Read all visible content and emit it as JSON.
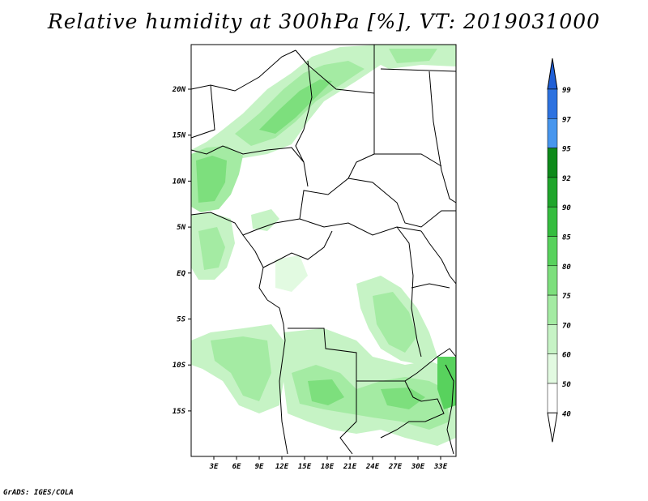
{
  "title": "Relative humidity at 300hPa [%], VT: 2019031000",
  "credit": "GrADS: IGES/COLA",
  "lat_ticks": [
    "20N",
    "15N",
    "10N",
    "5N",
    "EQ",
    "5S",
    "10S",
    "15S"
  ],
  "lon_ticks": [
    "3E",
    "6E",
    "9E",
    "12E",
    "15E",
    "18E",
    "21E",
    "24E",
    "27E",
    "30E",
    "33E"
  ],
  "colorbar": {
    "labels": [
      "99",
      "97",
      "95",
      "92",
      "90",
      "85",
      "80",
      "75",
      "70",
      "60",
      "50",
      "40"
    ],
    "colors": [
      "#1f5fd6",
      "#2d72e0",
      "#4796ee",
      "#0e8a1a",
      "#1fa52b",
      "#35bd3f",
      "#58d25d",
      "#7ddf7d",
      "#a4eba3",
      "#c6f3c5",
      "#e2fae1",
      "#ffffff"
    ]
  },
  "chart_data": {
    "type": "heatmap",
    "variable": "Relative humidity at 300hPa",
    "unit": "%",
    "valid_time": "2019031000",
    "lat_range": [
      -20,
      24
    ],
    "lon_range": [
      0,
      35
    ],
    "levels": [
      40,
      50,
      60,
      70,
      75,
      80,
      85,
      90,
      92,
      95,
      97,
      99
    ]
  }
}
